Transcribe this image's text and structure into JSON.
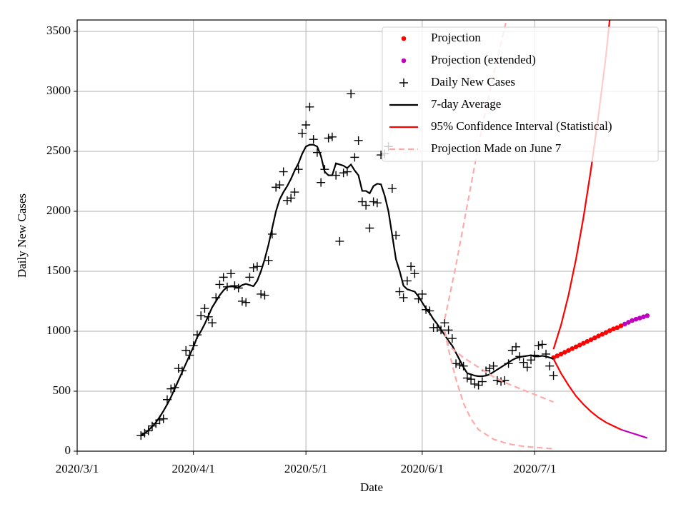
{
  "chart_data": {
    "type": "line",
    "xlabel": "Date",
    "ylabel": "Daily New Cases",
    "xlim": [
      "2020-03-01",
      "2020-08-05"
    ],
    "ylim": [
      0,
      3595
    ],
    "xticks": [
      {
        "value": "2020-03-01",
        "label": "2020/3/1"
      },
      {
        "value": "2020-04-01",
        "label": "2020/4/1"
      },
      {
        "value": "2020-05-01",
        "label": "2020/5/1"
      },
      {
        "value": "2020-06-01",
        "label": "2020/6/1"
      },
      {
        "value": "2020-07-01",
        "label": "2020/7/1"
      }
    ],
    "yticks": [
      0,
      500,
      1000,
      1500,
      2000,
      2500,
      3000,
      3500
    ],
    "grid": true,
    "legend": "upper right",
    "series": [
      {
        "name": "Projection",
        "color": "#ff0000",
        "marker": "dot",
        "x": [
          "2020-07-06",
          "2020-07-07",
          "2020-07-08",
          "2020-07-09",
          "2020-07-10",
          "2020-07-11",
          "2020-07-12",
          "2020-07-13",
          "2020-07-14",
          "2020-07-15",
          "2020-07-16",
          "2020-07-17",
          "2020-07-18",
          "2020-07-19",
          "2020-07-20",
          "2020-07-21",
          "2020-07-22",
          "2020-07-23",
          "2020-07-24"
        ],
        "values": [
          780,
          795,
          810,
          825,
          840,
          855,
          870,
          885,
          900,
          915,
          930,
          945,
          960,
          975,
          990,
          1005,
          1020,
          1030,
          1045
        ]
      },
      {
        "name": "Projection (extended)",
        "color": "#c000c0",
        "marker": "dot",
        "x": [
          "2020-07-25",
          "2020-07-26",
          "2020-07-27",
          "2020-07-28",
          "2020-07-29",
          "2020-07-30",
          "2020-07-31"
        ],
        "values": [
          1060,
          1075,
          1090,
          1100,
          1110,
          1120,
          1130
        ]
      },
      {
        "name": "Daily New Cases",
        "color": "#000000",
        "marker": "plus",
        "x": [
          "2020-03-18",
          "2020-03-19",
          "2020-03-20",
          "2020-03-21",
          "2020-03-22",
          "2020-03-23",
          "2020-03-24",
          "2020-03-25",
          "2020-03-26",
          "2020-03-27",
          "2020-03-28",
          "2020-03-29",
          "2020-03-30",
          "2020-03-31",
          "2020-04-01",
          "2020-04-02",
          "2020-04-03",
          "2020-04-04",
          "2020-04-05",
          "2020-04-06",
          "2020-04-07",
          "2020-04-08",
          "2020-04-09",
          "2020-04-10",
          "2020-04-11",
          "2020-04-12",
          "2020-04-13",
          "2020-04-14",
          "2020-04-15",
          "2020-04-16",
          "2020-04-17",
          "2020-04-18",
          "2020-04-19",
          "2020-04-20",
          "2020-04-21",
          "2020-04-22",
          "2020-04-23",
          "2020-04-24",
          "2020-04-25",
          "2020-04-26",
          "2020-04-27",
          "2020-04-28",
          "2020-04-29",
          "2020-04-30",
          "2020-05-01",
          "2020-05-02",
          "2020-05-03",
          "2020-05-04",
          "2020-05-05",
          "2020-05-06",
          "2020-05-07",
          "2020-05-08",
          "2020-05-09",
          "2020-05-10",
          "2020-05-11",
          "2020-05-12",
          "2020-05-13",
          "2020-05-14",
          "2020-05-15",
          "2020-05-16",
          "2020-05-17",
          "2020-05-18",
          "2020-05-19",
          "2020-05-20",
          "2020-05-21",
          "2020-05-22",
          "2020-05-23",
          "2020-05-24",
          "2020-05-25",
          "2020-05-26",
          "2020-05-27",
          "2020-05-28",
          "2020-05-29",
          "2020-05-30",
          "2020-05-31",
          "2020-06-01",
          "2020-06-02",
          "2020-06-03",
          "2020-06-04",
          "2020-06-05",
          "2020-06-06",
          "2020-06-07",
          "2020-06-08",
          "2020-06-09",
          "2020-06-10",
          "2020-06-11",
          "2020-06-12",
          "2020-06-13",
          "2020-06-14",
          "2020-06-15",
          "2020-06-16",
          "2020-06-17",
          "2020-06-18",
          "2020-06-19",
          "2020-06-20",
          "2020-06-21",
          "2020-06-22",
          "2020-06-23",
          "2020-06-24",
          "2020-06-25",
          "2020-06-26",
          "2020-06-27",
          "2020-06-28",
          "2020-06-29",
          "2020-06-30",
          "2020-07-01",
          "2020-07-02",
          "2020-07-03",
          "2020-07-04",
          "2020-07-05",
          "2020-07-06"
        ],
        "values": [
          130,
          150,
          170,
          210,
          230,
          260,
          270,
          430,
          520,
          530,
          690,
          670,
          840,
          800,
          880,
          970,
          1130,
          1190,
          1120,
          1070,
          1280,
          1390,
          1450,
          1370,
          1480,
          1380,
          1360,
          1250,
          1240,
          1450,
          1530,
          1540,
          1310,
          1300,
          1590,
          1810,
          2200,
          2220,
          2330,
          2090,
          2110,
          2160,
          2350,
          2650,
          2720,
          2870,
          2600,
          2490,
          2240,
          2350,
          2610,
          2620,
          2300,
          1750,
          2320,
          2330,
          2980,
          2450,
          2590,
          2080,
          2050,
          1860,
          2080,
          2070,
          2470,
          2480,
          2540,
          2190,
          1800,
          1330,
          1280,
          1420,
          1540,
          1480,
          1270,
          1310,
          1180,
          1170,
          1030,
          1030,
          1010,
          1070,
          1010,
          940,
          730,
          720,
          710,
          610,
          600,
          560,
          550,
          580,
          670,
          690,
          710,
          590,
          580,
          590,
          730,
          840,
          870,
          790,
          740,
          700,
          760,
          800,
          880,
          890,
          810,
          710,
          630
        ]
      },
      {
        "name": "7-day Average",
        "color": "#000000",
        "linestyle": "solid",
        "x": [
          "2020-03-18",
          "2020-03-19",
          "2020-03-20",
          "2020-03-21",
          "2020-03-22",
          "2020-03-23",
          "2020-03-24",
          "2020-03-25",
          "2020-03-26",
          "2020-03-27",
          "2020-03-28",
          "2020-03-29",
          "2020-03-30",
          "2020-03-31",
          "2020-04-01",
          "2020-04-02",
          "2020-04-03",
          "2020-04-04",
          "2020-04-05",
          "2020-04-06",
          "2020-04-07",
          "2020-04-08",
          "2020-04-09",
          "2020-04-10",
          "2020-04-11",
          "2020-04-12",
          "2020-04-13",
          "2020-04-14",
          "2020-04-15",
          "2020-04-16",
          "2020-04-17",
          "2020-04-18",
          "2020-04-19",
          "2020-04-20",
          "2020-04-21",
          "2020-04-22",
          "2020-04-23",
          "2020-04-24",
          "2020-04-25",
          "2020-04-26",
          "2020-04-27",
          "2020-04-28",
          "2020-04-29",
          "2020-04-30",
          "2020-05-01",
          "2020-05-02",
          "2020-05-03",
          "2020-05-04",
          "2020-05-05",
          "2020-05-06",
          "2020-05-07",
          "2020-05-08",
          "2020-05-09",
          "2020-05-10",
          "2020-05-11",
          "2020-05-12",
          "2020-05-13",
          "2020-05-14",
          "2020-05-15",
          "2020-05-16",
          "2020-05-17",
          "2020-05-18",
          "2020-05-19",
          "2020-05-20",
          "2020-05-21",
          "2020-05-22",
          "2020-05-23",
          "2020-05-24",
          "2020-05-25",
          "2020-05-26",
          "2020-05-27",
          "2020-05-28",
          "2020-05-29",
          "2020-05-30",
          "2020-05-31",
          "2020-06-01",
          "2020-06-02",
          "2020-06-03",
          "2020-06-04",
          "2020-06-05",
          "2020-06-06",
          "2020-06-07",
          "2020-06-08",
          "2020-06-09",
          "2020-06-10",
          "2020-06-11",
          "2020-06-12",
          "2020-06-13",
          "2020-06-14",
          "2020-06-15",
          "2020-06-16",
          "2020-06-17",
          "2020-06-18",
          "2020-06-19",
          "2020-06-20",
          "2020-06-21",
          "2020-06-22",
          "2020-06-23",
          "2020-06-24",
          "2020-06-25",
          "2020-06-26",
          "2020-06-27",
          "2020-06-28",
          "2020-06-29",
          "2020-06-30",
          "2020-07-01",
          "2020-07-02",
          "2020-07-03",
          "2020-07-04",
          "2020-07-05",
          "2020-07-06"
        ],
        "values": [
          130,
          150,
          175,
          205,
          240,
          285,
          335,
          390,
          450,
          520,
          590,
          660,
          730,
          800,
          870,
          950,
          1000,
          1060,
          1130,
          1200,
          1250,
          1300,
          1340,
          1370,
          1375,
          1370,
          1365,
          1385,
          1395,
          1385,
          1375,
          1420,
          1500,
          1600,
          1720,
          1860,
          2000,
          2100,
          2160,
          2210,
          2270,
          2340,
          2400,
          2480,
          2540,
          2555,
          2555,
          2540,
          2460,
          2330,
          2300,
          2300,
          2400,
          2390,
          2380,
          2360,
          2390,
          2340,
          2300,
          2170,
          2170,
          2150,
          2210,
          2230,
          2225,
          2130,
          2000,
          1800,
          1600,
          1500,
          1380,
          1350,
          1340,
          1330,
          1290,
          1240,
          1190,
          1150,
          1100,
          1060,
          1010,
          970,
          920,
          880,
          820,
          760,
          700,
          650,
          640,
          630,
          625,
          625,
          630,
          640,
          660,
          680,
          700,
          720,
          740,
          760,
          775,
          785,
          790,
          795,
          800,
          790,
          790,
          795,
          790,
          780,
          770
        ]
      },
      {
        "name": "95% Confidence Interval (Statistical)",
        "color": "#ff0000",
        "linestyle": "solid",
        "x": [
          "2020-07-06",
          "2020-07-08",
          "2020-07-10",
          "2020-07-12",
          "2020-07-14",
          "2020-07-16",
          "2020-07-18",
          "2020-07-20",
          "2020-07-22"
        ],
        "values": [
          850,
          1050,
          1300,
          1600,
          1950,
          2350,
          2800,
          3300,
          3900
        ]
      },
      {
        "name": "Projection Made on June 7",
        "color": "#ffaaaa",
        "linestyle": "dashed",
        "x": [
          "2020-06-07",
          "2020-06-10",
          "2020-06-13",
          "2020-06-16",
          "2020-06-19",
          "2020-06-22",
          "2020-06-25"
        ],
        "values": [
          1100,
          1550,
          2050,
          2550,
          3000,
          3400,
          3800
        ]
      },
      {
        "color": "#ff0000",
        "linestyle": "solid",
        "x": [
          "2020-07-06",
          "2020-07-08",
          "2020-07-10",
          "2020-07-12",
          "2020-07-14",
          "2020-07-16",
          "2020-07-18",
          "2020-07-20",
          "2020-07-22",
          "2020-07-24"
        ],
        "values": [
          770,
          650,
          550,
          460,
          390,
          330,
          280,
          240,
          210,
          180
        ]
      },
      {
        "color": "#c000c0",
        "linestyle": "solid",
        "x": [
          "2020-07-24",
          "2020-07-26",
          "2020-07-28",
          "2020-07-30",
          "2020-07-31"
        ],
        "values": [
          180,
          160,
          140,
          120,
          110
        ]
      },
      {
        "color": "#ffaaaa",
        "linestyle": "dashed",
        "x": [
          "2020-06-07",
          "2020-06-08",
          "2020-06-12",
          "2020-06-16",
          "2020-06-20",
          "2020-06-24",
          "2020-06-28",
          "2020-07-02",
          "2020-07-06"
        ],
        "values": [
          1000,
          880,
          780,
          700,
          620,
          560,
          510,
          460,
          410
        ]
      },
      {
        "color": "#ffaaaa",
        "linestyle": "dashed",
        "x": [
          "2020-06-07",
          "2020-06-08",
          "2020-06-10",
          "2020-06-12",
          "2020-06-14",
          "2020-06-16",
          "2020-06-20",
          "2020-06-24",
          "2020-06-28",
          "2020-07-02",
          "2020-07-06"
        ],
        "values": [
          1000,
          850,
          600,
          400,
          270,
          180,
          100,
          60,
          40,
          30,
          20
        ]
      }
    ]
  }
}
